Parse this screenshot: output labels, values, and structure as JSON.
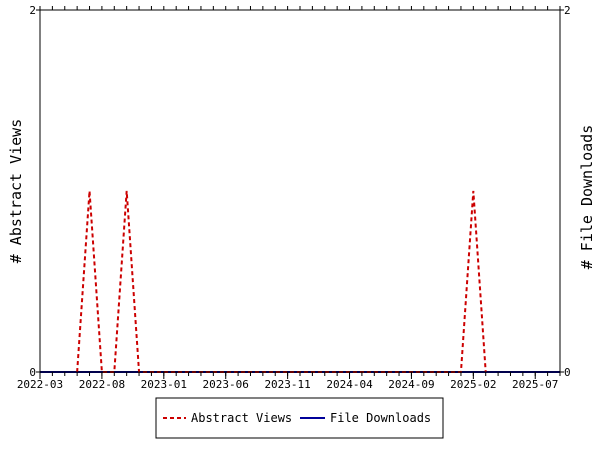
{
  "chart_data": {
    "type": "line",
    "title": "",
    "x_tick_labels": [
      "2022-03",
      "2022-08",
      "2023-01",
      "2023-06",
      "2023-11",
      "2024-04",
      "2024-09",
      "2025-02",
      "2025-07"
    ],
    "x_range": [
      "2022-03",
      "2025-09"
    ],
    "y_left": {
      "label": "# Abstract Views",
      "range": [
        0,
        2
      ],
      "tick_labels": [
        "0",
        "2"
      ]
    },
    "y_right": {
      "label": "# File Downloads",
      "range": [
        0,
        2
      ],
      "tick_labels": [
        "0",
        "2"
      ]
    },
    "series": [
      {
        "name": "Abstract Views",
        "axis": "left",
        "color": "#cc0000",
        "style": "dashed",
        "points": [
          [
            "2022-06",
            0
          ],
          [
            "2022-07",
            1
          ],
          [
            "2022-08",
            0
          ],
          [
            "2022-09",
            0
          ],
          [
            "2022-10",
            1
          ],
          [
            "2022-11",
            0
          ],
          [
            "2025-01",
            0
          ],
          [
            "2025-02",
            1
          ],
          [
            "2025-03",
            0
          ]
        ]
      },
      {
        "name": "File Downloads",
        "axis": "right",
        "color": "#000099",
        "style": "solid",
        "points": [
          [
            "2022-03",
            0
          ],
          [
            "2025-09",
            0
          ]
        ]
      }
    ],
    "grid": false,
    "legend_position": "bottom"
  }
}
